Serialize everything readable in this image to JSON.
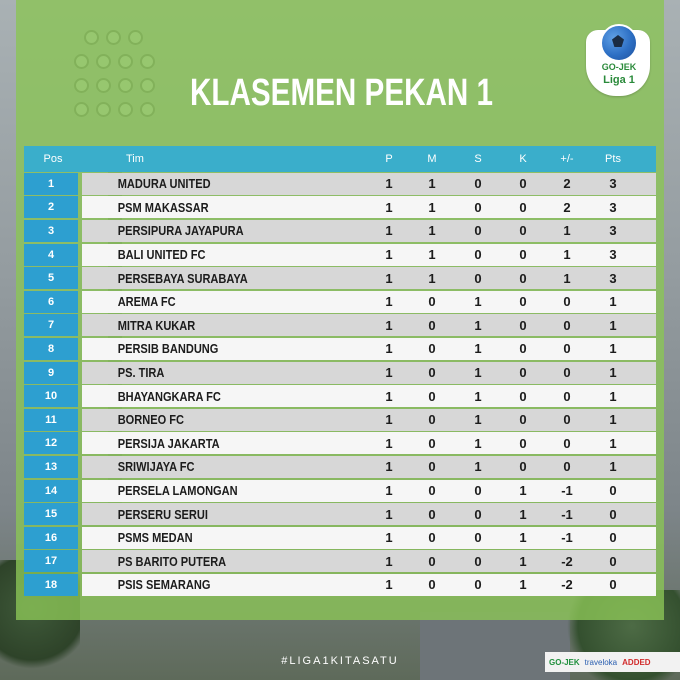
{
  "title": "KLASEMEN PEKAN 1",
  "logo": {
    "brand": "GO-JEK",
    "league": "Liga 1"
  },
  "columns": [
    "Pos",
    "Tim",
    "P",
    "M",
    "S",
    "K",
    "+/-",
    "Pts"
  ],
  "rows": [
    {
      "pos": "1",
      "team": "MADURA UNITED",
      "p": "1",
      "m": "1",
      "s": "0",
      "k": "0",
      "gd": "2",
      "pts": "3"
    },
    {
      "pos": "2",
      "team": "PSM MAKASSAR",
      "p": "1",
      "m": "1",
      "s": "0",
      "k": "0",
      "gd": "2",
      "pts": "3"
    },
    {
      "pos": "3",
      "team": "PERSIPURA JAYAPURA",
      "p": "1",
      "m": "1",
      "s": "0",
      "k": "0",
      "gd": "1",
      "pts": "3"
    },
    {
      "pos": "4",
      "team": "BALI UNITED FC",
      "p": "1",
      "m": "1",
      "s": "0",
      "k": "0",
      "gd": "1",
      "pts": "3"
    },
    {
      "pos": "5",
      "team": "PERSEBAYA SURABAYA",
      "p": "1",
      "m": "1",
      "s": "0",
      "k": "0",
      "gd": "1",
      "pts": "3"
    },
    {
      "pos": "6",
      "team": "AREMA FC",
      "p": "1",
      "m": "0",
      "s": "1",
      "k": "0",
      "gd": "0",
      "pts": "1"
    },
    {
      "pos": "7",
      "team": "MITRA KUKAR",
      "p": "1",
      "m": "0",
      "s": "1",
      "k": "0",
      "gd": "0",
      "pts": "1"
    },
    {
      "pos": "8",
      "team": "PERSIB BANDUNG",
      "p": "1",
      "m": "0",
      "s": "1",
      "k": "0",
      "gd": "0",
      "pts": "1"
    },
    {
      "pos": "9",
      "team": "PS. TIRA",
      "p": "1",
      "m": "0",
      "s": "1",
      "k": "0",
      "gd": "0",
      "pts": "1"
    },
    {
      "pos": "10",
      "team": "BHAYANGKARA FC",
      "p": "1",
      "m": "0",
      "s": "1",
      "k": "0",
      "gd": "0",
      "pts": "1"
    },
    {
      "pos": "11",
      "team": "BORNEO FC",
      "p": "1",
      "m": "0",
      "s": "1",
      "k": "0",
      "gd": "0",
      "pts": "1"
    },
    {
      "pos": "12",
      "team": "PERSIJA JAKARTA",
      "p": "1",
      "m": "0",
      "s": "1",
      "k": "0",
      "gd": "0",
      "pts": "1"
    },
    {
      "pos": "13",
      "team": "SRIWIJAYA FC",
      "p": "1",
      "m": "0",
      "s": "1",
      "k": "0",
      "gd": "0",
      "pts": "1"
    },
    {
      "pos": "14",
      "team": "PERSELA LAMONGAN",
      "p": "1",
      "m": "0",
      "s": "0",
      "k": "1",
      "gd": "-1",
      "pts": "0"
    },
    {
      "pos": "15",
      "team": "PERSERU SERUI",
      "p": "1",
      "m": "0",
      "s": "0",
      "k": "1",
      "gd": "-1",
      "pts": "0"
    },
    {
      "pos": "16",
      "team": "PSMS MEDAN",
      "p": "1",
      "m": "0",
      "s": "0",
      "k": "1",
      "gd": "-1",
      "pts": "0"
    },
    {
      "pos": "17",
      "team": "PS BARITO PUTERA",
      "p": "1",
      "m": "0",
      "s": "0",
      "k": "1",
      "gd": "-2",
      "pts": "0"
    },
    {
      "pos": "18",
      "team": "PSIS SEMARANG",
      "p": "1",
      "m": "0",
      "s": "0",
      "k": "1",
      "gd": "-2",
      "pts": "0"
    }
  ],
  "hashtag": "#LIGA1KITASATU",
  "ads": [
    "GO-JEK",
    "traveloka",
    "ADDED"
  ],
  "colors": {
    "panel_green": "#8bc456",
    "header_blue": "#3aaecb",
    "pos_blue": "#2d9fd0",
    "row_grey": "#d7d7d7",
    "row_white": "#f6f6f6"
  }
}
